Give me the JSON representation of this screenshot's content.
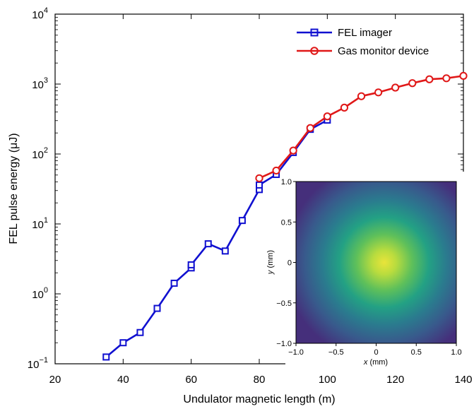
{
  "chart_data": [
    {
      "type": "line",
      "xlabel": "Undulator magnetic length (m)",
      "ylabel": "FEL pulse energy (μJ)",
      "xlim": [
        20,
        140
      ],
      "ylim": [
        0.1,
        10000
      ],
      "yscale": "log",
      "xticks": [
        20,
        40,
        60,
        80,
        100,
        120,
        140
      ],
      "yticks": [
        {
          "value": 0.1,
          "base": "10",
          "exp": "−1"
        },
        {
          "value": 1,
          "base": "10",
          "exp": "0"
        },
        {
          "value": 10,
          "base": "10",
          "exp": "1"
        },
        {
          "value": 100,
          "base": "10",
          "exp": "2"
        },
        {
          "value": 1000,
          "base": "10",
          "exp": "3"
        },
        {
          "value": 10000,
          "base": "10",
          "exp": "4"
        }
      ],
      "grid": false,
      "legend_position": "top-right",
      "series": [
        {
          "name": "FEL imager",
          "color": "#1010d0",
          "marker": "square",
          "x": [
            35,
            40,
            45,
            50,
            55,
            60,
            60,
            65,
            70,
            75,
            80,
            80,
            85,
            90,
            95,
            100
          ],
          "y": [
            0.125,
            0.2,
            0.28,
            0.62,
            1.42,
            2.35,
            2.6,
            5.2,
            4.1,
            11.2,
            31,
            36,
            51,
            105,
            225,
            305
          ]
        },
        {
          "name": "Gas monitor device",
          "color": "#e01818",
          "marker": "circle",
          "x": [
            80,
            85,
            90,
            95,
            100,
            105,
            110,
            115,
            120,
            125,
            130,
            135,
            140
          ],
          "y": [
            45,
            58,
            112,
            235,
            345,
            460,
            670,
            760,
            890,
            1030,
            1170,
            1210,
            1310
          ]
        }
      ]
    },
    {
      "type": "heatmap",
      "xlabel_var": "x",
      "xlabel_unit": " (mm)",
      "ylabel_var": "y",
      "ylabel_unit": " (mm)",
      "xlim": [
        -1.0,
        1.0
      ],
      "ylim": [
        -1.0,
        1.0
      ],
      "xticks": [
        {
          "value": -1.0,
          "label": "−1.0"
        },
        {
          "value": -0.5,
          "label": "−0.5"
        },
        {
          "value": 0,
          "label": "0"
        },
        {
          "value": 0.5,
          "label": "0.5"
        },
        {
          "value": 1.0,
          "label": "1.0"
        }
      ],
      "yticks": [
        {
          "value": 1.0,
          "label": "1.0"
        },
        {
          "value": 0.5,
          "label": "0.5"
        },
        {
          "value": 0,
          "label": "0"
        },
        {
          "value": -0.5,
          "label": "−0.5"
        },
        {
          "value": -1.0,
          "label": "−1.0"
        }
      ],
      "colormap": "viridis",
      "beam_center": [
        0.05,
        0.0
      ],
      "colors": {
        "low": "#3b2a78",
        "mid": "#2a8a8a",
        "high": "#e6e53a"
      }
    }
  ]
}
